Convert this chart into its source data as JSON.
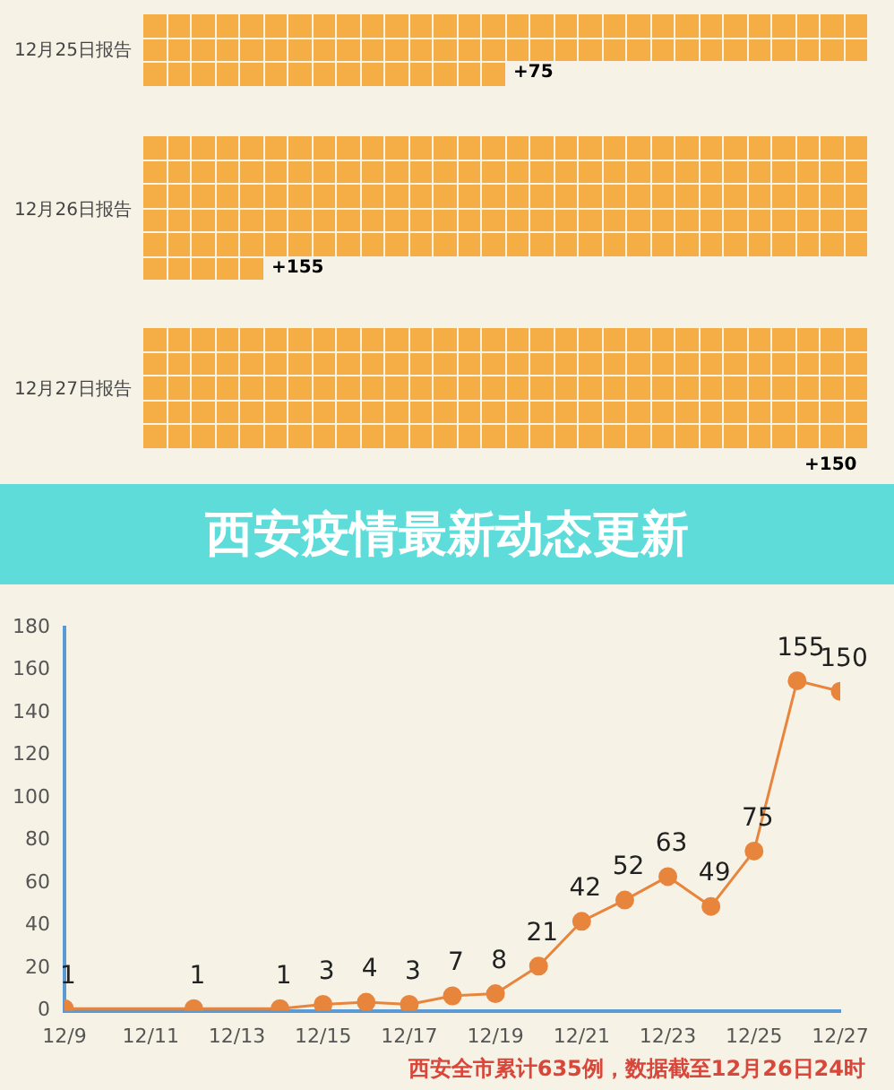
{
  "chart_data": [
    {
      "type": "other",
      "categories": [
        "12月25日报告",
        "12月26日报告",
        "12月27日报告"
      ],
      "values": [
        75,
        155,
        150
      ],
      "value_labels": [
        "+75",
        "+155",
        "+150"
      ],
      "color": "#f5ad46"
    },
    {
      "type": "line",
      "title": "西安疫情最新动态更新",
      "x": [
        "--12-09",
        "--12-12",
        "--12-14",
        "--12-15",
        "--12-16",
        "--12-17",
        "--12-18",
        "--12-19",
        "--12-20",
        "--12-21",
        "--12-22",
        "--12-23",
        "--12-24",
        "--12-25",
        "--12-26",
        "--12-27"
      ],
      "series": [
        {
          "color": "#e8853d",
          "values": [
            1,
            1,
            1,
            3,
            4,
            3,
            7,
            8,
            21,
            42,
            52,
            63,
            49,
            75,
            155,
            150
          ]
        }
      ],
      "xlim": [
        "--12-09",
        "--12-27"
      ],
      "xticks": [
        {
          "value": "--12-09",
          "label": "12/9"
        },
        {
          "value": "--12-11",
          "label": "12/11"
        },
        {
          "value": "--12-13",
          "label": "12/13"
        },
        {
          "value": "--12-15",
          "label": "12/15"
        },
        {
          "value": "--12-17",
          "label": "12/17"
        },
        {
          "value": "--12-19",
          "label": "12/19"
        },
        {
          "value": "--12-21",
          "label": "12/21"
        },
        {
          "value": "--12-23",
          "label": "12/23"
        },
        {
          "value": "--12-25",
          "label": "12/25"
        },
        {
          "value": "--12-27",
          "label": "12/27"
        }
      ],
      "ylim": [
        0,
        180
      ],
      "yticks": [
        0,
        20,
        40,
        60,
        80,
        100,
        120,
        140,
        160,
        180
      ],
      "grid": false,
      "legend": false,
      "marker": "circle",
      "line_style": "solid",
      "data_labels": true,
      "annotations": [
        "西安全市累计635例，数据截至12月26日24时"
      ]
    }
  ]
}
